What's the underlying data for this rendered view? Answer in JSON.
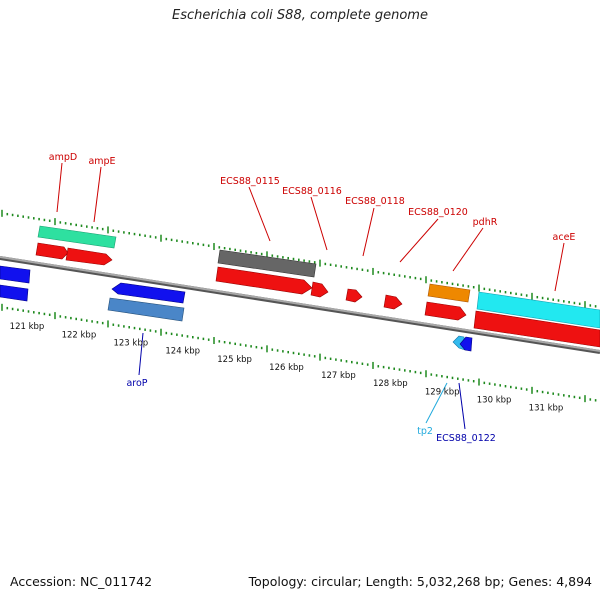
{
  "title": "Escherichia coli S88, complete genome",
  "footer": {
    "accession": "Accession: NC_011742",
    "stats": "Topology: circular; Length: 5,032,268 bp; Genes: 4,894"
  },
  "colors": {
    "backbone": "#8a8a8a",
    "ticks": "#1f8a1f",
    "forward_label": "#cc0000",
    "reverse_label": "#0000aa",
    "cyan_label": "#22aadd"
  },
  "scale_labels": [
    "121 kbp",
    "122 kbp",
    "123 kbp",
    "124 kbp",
    "125 kbp",
    "126 kbp",
    "127 kbp",
    "128 kbp",
    "129 kbp",
    "130 kbp",
    "131 kbp"
  ],
  "gene_labels": {
    "ampD": "ampD",
    "ampE": "ampE",
    "ECS88_0115": "ECS88_0115",
    "ECS88_0116": "ECS88_0116",
    "ECS88_0118": "ECS88_0118",
    "ECS88_0120": "ECS88_0120",
    "pdhR": "pdhR",
    "aceE": "aceE",
    "aroP": "aroP",
    "tp2": "tp2",
    "ECS88_0122": "ECS88_0122"
  }
}
